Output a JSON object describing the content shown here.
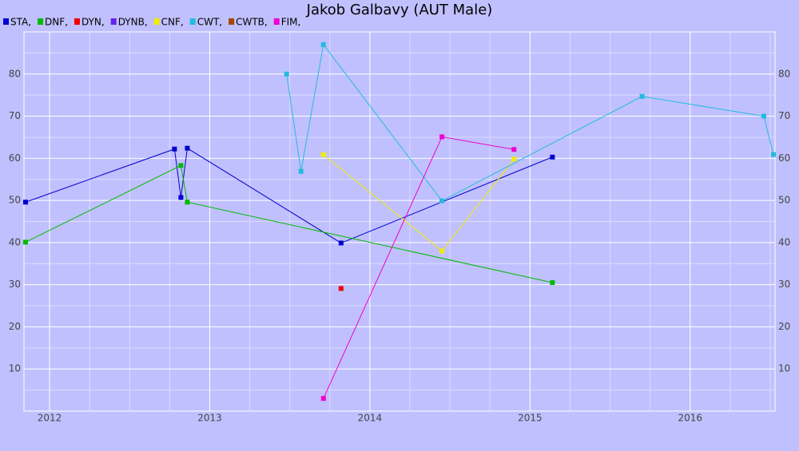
{
  "chart_data": {
    "type": "line",
    "title": "Jakob Galbavy (AUT Male)",
    "xlim": [
      2011.84,
      2016.53
    ],
    "xticks": [
      2012,
      2013,
      2014,
      2015,
      2016
    ],
    "ylim": [
      0,
      90
    ],
    "yticks": [
      10,
      20,
      30,
      40,
      50,
      60,
      70,
      80
    ],
    "grid": true,
    "series": [
      {
        "name": "STA,",
        "color": "#0000cc",
        "x": [
          2011.85,
          2012.78,
          2012.82,
          2012.86,
          2013.82,
          2015.14
        ],
        "values": [
          49.6,
          62.2,
          50.7,
          62.4,
          39.9,
          60.3
        ]
      },
      {
        "name": "DNF,",
        "color": "#00bb00",
        "x": [
          2011.85,
          2012.82,
          2012.86,
          2015.14
        ],
        "values": [
          40.1,
          58.3,
          49.6,
          30.5
        ]
      },
      {
        "name": "DYN,",
        "color": "#ee0000",
        "x": [
          2013.82
        ],
        "values": [
          29.1
        ]
      },
      {
        "name": "DYNB,",
        "color": "#6622ee",
        "x": [],
        "values": []
      },
      {
        "name": "CNF,",
        "color": "#eeee00",
        "x": [
          2013.71,
          2014.45,
          2014.9
        ],
        "values": [
          60.9,
          38.0,
          59.8
        ]
      },
      {
        "name": "CWT,",
        "color": "#22bbdd",
        "x": [
          2013.48,
          2013.57,
          2013.71,
          2014.45,
          2015.7,
          2016.46,
          2016.52
        ],
        "values": [
          80.0,
          56.9,
          87.0,
          49.9,
          74.7,
          70.0,
          60.9
        ]
      },
      {
        "name": "CWTB,",
        "color": "#aa4400",
        "x": [],
        "values": []
      },
      {
        "name": "FIM,",
        "color": "#ee00cc",
        "x": [
          2013.71,
          2014.45,
          2014.9
        ],
        "values": [
          3.0,
          65.1,
          62.1
        ]
      }
    ]
  }
}
